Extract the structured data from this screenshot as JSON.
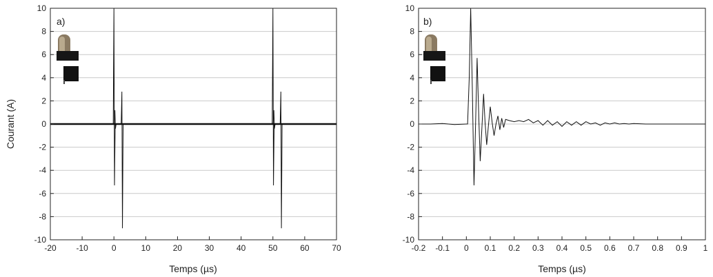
{
  "chart_data": [
    {
      "type": "line",
      "panel_label": "a)",
      "xlabel": "Temps (µs)",
      "ylabel": "Courant (A)",
      "xlim": [
        -20,
        70
      ],
      "ylim": [
        -10,
        10
      ],
      "xticks": [
        -20,
        -10,
        0,
        10,
        20,
        30,
        40,
        50,
        60,
        70
      ],
      "yticks": [
        -10,
        -8,
        -6,
        -4,
        -2,
        0,
        2,
        4,
        6,
        8,
        10
      ],
      "grid": "horizontal",
      "baseline_noise_A": 0.1,
      "spikes": [
        {
          "x": 0.0,
          "peak": 10.0,
          "trough": -5.3
        },
        {
          "x": 0.3,
          "peak": 1.2,
          "trough": -0.4
        },
        {
          "x": 2.5,
          "peak": 2.8,
          "trough": -9.0
        },
        {
          "x": 50.0,
          "peak": 10.0,
          "trough": -5.3
        },
        {
          "x": 50.3,
          "peak": 1.2,
          "trough": -0.4
        },
        {
          "x": 52.5,
          "peak": 2.8,
          "trough": -9.0
        }
      ],
      "inset_icon": "electrode-gap-icon"
    },
    {
      "type": "line",
      "panel_label": "b)",
      "xlabel": "Temps (µs)",
      "ylabel": "",
      "xlim": [
        -0.2,
        1.0
      ],
      "ylim": [
        -10,
        10
      ],
      "xticks": [
        -0.2,
        -0.1,
        0.0,
        0.1,
        0.2,
        0.3,
        0.4,
        0.5,
        0.6,
        0.7,
        0.8,
        0.9,
        1.0
      ],
      "yticks": [
        -10,
        -8,
        -6,
        -4,
        -2,
        0,
        2,
        4,
        6,
        8,
        10
      ],
      "grid": "horizontal",
      "x": [
        -0.2,
        -0.15,
        -0.1,
        -0.05,
        0.0,
        0.005,
        0.012,
        0.018,
        0.025,
        0.032,
        0.038,
        0.045,
        0.052,
        0.058,
        0.065,
        0.072,
        0.078,
        0.085,
        0.092,
        0.1,
        0.108,
        0.116,
        0.124,
        0.132,
        0.14,
        0.148,
        0.156,
        0.164,
        0.18,
        0.2,
        0.22,
        0.24,
        0.26,
        0.28,
        0.3,
        0.32,
        0.34,
        0.36,
        0.38,
        0.4,
        0.42,
        0.44,
        0.46,
        0.48,
        0.5,
        0.52,
        0.54,
        0.56,
        0.58,
        0.6,
        0.62,
        0.64,
        0.66,
        0.68,
        0.7,
        0.75,
        0.8,
        0.85,
        0.9,
        0.95,
        1.0
      ],
      "y": [
        0.0,
        0.0,
        0.05,
        -0.05,
        0.0,
        0.0,
        4.0,
        10.0,
        3.0,
        -5.3,
        -0.5,
        5.7,
        0.5,
        -3.2,
        -0.3,
        2.6,
        0.2,
        -1.8,
        -0.2,
        1.5,
        0.1,
        -1.0,
        0.0,
        0.7,
        -0.5,
        0.5,
        -0.3,
        0.4,
        0.3,
        0.2,
        0.3,
        0.2,
        0.4,
        0.1,
        0.3,
        -0.1,
        0.3,
        -0.1,
        0.2,
        -0.2,
        0.2,
        -0.1,
        0.2,
        -0.1,
        0.2,
        0.0,
        0.1,
        -0.1,
        0.1,
        0.0,
        0.1,
        0.0,
        0.05,
        0.0,
        0.05,
        0.0,
        0.0,
        0.0,
        0.0,
        0.0,
        0.0
      ],
      "inset_icon": "electrode-gap-icon"
    }
  ]
}
